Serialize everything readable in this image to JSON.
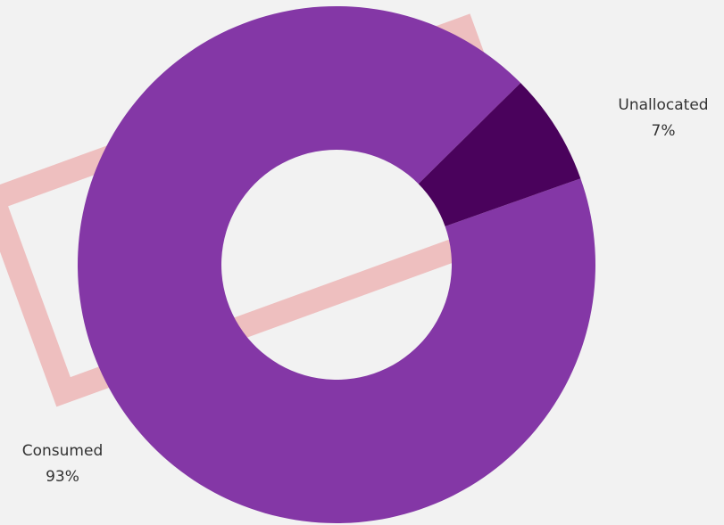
{
  "chart_data": {
    "type": "donut",
    "categories": [
      "Consumed",
      "Unallocated"
    ],
    "values": [
      93,
      7
    ],
    "value_labels": [
      "93%",
      "7%"
    ],
    "colors": [
      "#8437a6",
      "#4a025c"
    ]
  }
}
